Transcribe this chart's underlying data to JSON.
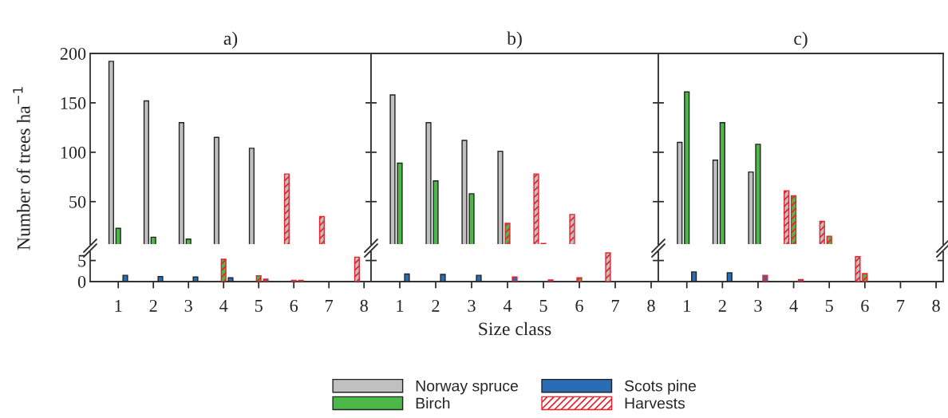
{
  "chart_data": [
    {
      "type": "bar",
      "title": "a)",
      "ylabel": "Number of trees ha$^{−1}$",
      "legend": "bottom",
      "categories": [
        "1",
        "2",
        "3",
        "4",
        "5",
        "6",
        "7",
        "8"
      ],
      "ylim": [
        7,
        200
      ],
      "yticks": [
        50,
        100,
        150,
        200
      ],
      "tick_labels": "y",
      "series": [
        {
          "name": "Norway spruce",
          "color": "#c0c0c0",
          "values": [
            192,
            152,
            130,
            115,
            104,
            78,
            35,
            null
          ],
          "colors": [
            "#c0c0c0",
            "#c0c0c0",
            "#c0c0c0",
            "#c0c0c0",
            "#c0c0c0",
            "#e8202a",
            "#e8202a",
            "#c0c0c0"
          ]
        },
        {
          "name": "Birch",
          "color": "#4cb847",
          "values": [
            23,
            14,
            12,
            null,
            null,
            null,
            null,
            null
          ]
        },
        {
          "name": "Scots pine",
          "color": "#2a6db5",
          "values": [
            null,
            null,
            null,
            null,
            null,
            null,
            null,
            null
          ]
        },
        {
          "name": "Harvests",
          "color": "#e8202a",
          "values": [
            null,
            null,
            null,
            null,
            null,
            null,
            null,
            null
          ]
        }
      ]
    },
    {
      "type": "bar",
      "title": "b)",
      "categories": [
        "1",
        "2",
        "3",
        "4",
        "5",
        "6",
        "7",
        "8"
      ],
      "ylim": [
        7,
        200
      ],
      "yticks": [
        50,
        100,
        150,
        200
      ],
      "tick_labels": false,
      "series": [
        {
          "color": "#c0c0c0",
          "values": [
            158,
            130,
            112,
            101,
            78,
            37,
            null,
            null
          ],
          "colors": [
            "#c0c0c0",
            "#c0c0c0",
            "#c0c0c0",
            "#c0c0c0",
            "#e8202a",
            "#e8202a",
            "#c0c0c0",
            "#c0c0c0"
          ]
        },
        {
          "color": "#4cb847",
          "values": [
            89,
            71,
            58,
            28,
            7.6,
            null,
            null,
            null
          ],
          "colors": [
            "#4cb847",
            "#4cb847",
            "#4cb847",
            "#e8202a",
            "#e8202a",
            "#4cb847",
            "#4cb847",
            "#4cb847"
          ]
        },
        {
          "color": "#2a6db5",
          "values": [
            null,
            null,
            null,
            null,
            null,
            null,
            null,
            null
          ]
        }
      ]
    },
    {
      "type": "bar",
      "title": "c)",
      "categories": [
        "1",
        "2",
        "3",
        "4",
        "5",
        "6",
        "7",
        "8"
      ],
      "ylim": [
        7,
        200
      ],
      "yticks": [
        50,
        100,
        150,
        200
      ],
      "tick_labels": false,
      "series": [
        {
          "color": "#c0c0c0",
          "values": [
            110,
            92,
            80,
            61,
            30,
            null,
            null,
            null
          ],
          "colors": [
            "#c0c0c0",
            "#c0c0c0",
            "#c0c0c0",
            "#e8202a",
            "#e8202a",
            "#c0c0c0",
            "#c0c0c0",
            "#c0c0c0"
          ]
        },
        {
          "color": "#4cb847",
          "values": [
            161,
            130,
            108,
            56,
            15,
            null,
            null,
            null
          ],
          "colors": [
            "#4cb847",
            "#4cb847",
            "#4cb847",
            "#e8202a",
            "#e8202a",
            "#4cb847",
            "#4cb847",
            "#4cb847"
          ]
        },
        {
          "color": "#2a6db5",
          "values": [
            null,
            null,
            null,
            null,
            null,
            null,
            null,
            null
          ]
        }
      ]
    },
    {
      "type": "bar",
      "categories": [
        "1",
        "2",
        "3",
        "4",
        "5",
        "6",
        "7",
        "8"
      ],
      "ylim": [
        0,
        7
      ],
      "yticks": [
        0,
        5
      ],
      "series": [
        {
          "color": "#c0c0c0",
          "values": [
            null,
            null,
            null,
            null,
            null,
            null,
            null,
            5.8
          ],
          "colors": [
            "#c0c0c0",
            "#c0c0c0",
            "#c0c0c0",
            "#c0c0c0",
            "#c0c0c0",
            "#c0c0c0",
            "#c0c0c0",
            "#e8202a"
          ]
        },
        {
          "color": "#4cb847",
          "values": [
            null,
            null,
            null,
            5.3,
            1.4,
            0.3,
            0,
            0
          ],
          "colors": [
            "#4cb847",
            "#4cb847",
            "#4cb847",
            "#e8202a",
            "#e8202a",
            "#e8202a",
            "#4cb847",
            "#4cb847"
          ]
        },
        {
          "color": "#2a6db5",
          "values": [
            1.5,
            1.2,
            1.1,
            0.9,
            0.6,
            0.3,
            0,
            0
          ],
          "colors": [
            "#2a6db5",
            "#2a6db5",
            "#2a6db5",
            "#2a6db5",
            "#e8202a",
            "#e8202a",
            "#2a6db5",
            "#2a6db5"
          ]
        }
      ]
    },
    {
      "type": "bar",
      "xlabel": "Size class",
      "categories": [
        "1",
        "2",
        "3",
        "4",
        "5",
        "6",
        "7",
        "8"
      ],
      "ylim": [
        0,
        7
      ],
      "yticks": [
        0,
        5
      ],
      "tick_labels": "x",
      "series": [
        {
          "color": "#c0c0c0",
          "values": [
            null,
            null,
            null,
            null,
            null,
            null,
            6.8,
            0
          ],
          "colors": [
            "#c0c0c0",
            "#c0c0c0",
            "#c0c0c0",
            "#c0c0c0",
            "#c0c0c0",
            "#c0c0c0",
            "#e8202a",
            "#c0c0c0"
          ]
        },
        {
          "color": "#4cb847",
          "values": [
            null,
            null,
            null,
            null,
            null,
            0.9,
            0,
            0
          ],
          "colors": [
            "#4cb847",
            "#4cb847",
            "#4cb847",
            "#4cb847",
            "#4cb847",
            "#e8202a",
            "#4cb847",
            "#4cb847"
          ]
        },
        {
          "color": "#2a6db5",
          "values": [
            1.8,
            1.7,
            1.5,
            1.1,
            0.4,
            0,
            0,
            0
          ],
          "colors": [
            "#2a6db5",
            "#2a6db5",
            "#2a6db5",
            "#e8202a",
            "#e8202a",
            "#2a6db5",
            "#2a6db5",
            "#2a6db5"
          ]
        }
      ]
    },
    {
      "type": "bar",
      "categories": [
        "1",
        "2",
        "3",
        "4",
        "5",
        "6",
        "7",
        "8"
      ],
      "ylim": [
        0,
        7
      ],
      "yticks": [
        0,
        5
      ],
      "tick_labels": "x",
      "series": [
        {
          "color": "#c0c0c0",
          "values": [
            null,
            null,
            null,
            null,
            null,
            5.9,
            0,
            0
          ],
          "colors": [
            "#c0c0c0",
            "#c0c0c0",
            "#c0c0c0",
            "#c0c0c0",
            "#c0c0c0",
            "#e8202a",
            "#c0c0c0",
            "#c0c0c0"
          ]
        },
        {
          "color": "#4cb847",
          "values": [
            null,
            null,
            null,
            null,
            null,
            1.9,
            0,
            0
          ],
          "colors": [
            "#4cb847",
            "#4cb847",
            "#4cb847",
            "#4cb847",
            "#4cb847",
            "#e8202a",
            "#4cb847",
            "#4cb847"
          ]
        },
        {
          "color": "#2a6db5",
          "values": [
            2.3,
            2.1,
            1.5,
            0.5,
            0,
            0,
            0,
            0
          ],
          "colors": [
            "#2a6db5",
            "#2a6db5",
            "#e8202a",
            "#e8202a",
            "#2a6db5",
            "#2a6db5",
            "#2a6db5",
            "#2a6db5"
          ]
        }
      ]
    }
  ]
}
